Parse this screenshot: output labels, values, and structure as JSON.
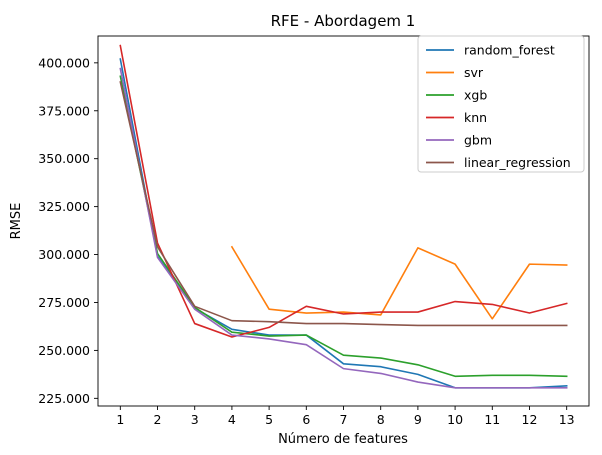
{
  "chart_data": {
    "type": "line",
    "title": "RFE - Abordagem 1",
    "xlabel": "Número de features",
    "ylabel": "RMSE",
    "x": [
      1,
      2,
      3,
      4,
      5,
      6,
      7,
      8,
      9,
      10,
      11,
      12,
      13
    ],
    "x_tick_labels": [
      "1",
      "2",
      "3",
      "4",
      "5",
      "6",
      "7",
      "8",
      "9",
      "10",
      "11",
      "12",
      "13"
    ],
    "ylim": [
      221000,
      414000
    ],
    "y_ticks": [
      225000,
      250000,
      275000,
      300000,
      325000,
      350000,
      375000,
      400000
    ],
    "y_tick_labels": [
      "225.000",
      "250.000",
      "275.000",
      "300.000",
      "325.000",
      "350.000",
      "375.000",
      "400.000"
    ],
    "legend_position": "upper right",
    "grid": false,
    "series": [
      {
        "name": "random_forest",
        "color": "#1f77b4",
        "x": [
          1,
          2,
          3,
          4,
          5,
          6,
          7,
          8,
          9,
          10,
          11,
          12,
          13
        ],
        "values": [
          402000,
          299000,
          272000,
          261000,
          258000,
          258000,
          243000,
          241500,
          237500,
          230500,
          230500,
          230500,
          231500
        ]
      },
      {
        "name": "svr",
        "color": "#ff7f0e",
        "x": [
          4,
          5,
          6,
          7,
          8,
          9,
          10,
          11,
          12,
          13
        ],
        "values": [
          304000,
          271500,
          269500,
          270000,
          268500,
          303500,
          295000,
          266500,
          295000,
          294500
        ]
      },
      {
        "name": "xgb",
        "color": "#2ca02c",
        "x": [
          1,
          2,
          3,
          4,
          5,
          6,
          7,
          8,
          9,
          10,
          11,
          12,
          13
        ],
        "values": [
          393000,
          300500,
          272500,
          259500,
          257500,
          258000,
          247500,
          246000,
          242500,
          236500,
          237000,
          237000,
          236500
        ]
      },
      {
        "name": "knn",
        "color": "#d62728",
        "x": [
          1,
          2,
          3,
          4,
          5,
          6,
          7,
          8,
          9,
          10,
          11,
          12,
          13
        ],
        "values": [
          409000,
          306000,
          264000,
          257000,
          262000,
          273000,
          269000,
          270000,
          270000,
          275500,
          274000,
          269500,
          274500
        ]
      },
      {
        "name": "gbm",
        "color": "#9467bd",
        "x": [
          1,
          2,
          3,
          4,
          5,
          6,
          7,
          8,
          9,
          10,
          11,
          12,
          13
        ],
        "values": [
          397000,
          298500,
          271500,
          258000,
          256000,
          253000,
          240500,
          238000,
          233500,
          230500,
          230500,
          230500,
          230500
        ]
      },
      {
        "name": "linear_regression",
        "color": "#8c564b",
        "x": [
          1,
          2,
          3,
          4,
          5,
          6,
          7,
          8,
          9,
          10,
          11,
          12,
          13
        ],
        "values": [
          390000,
          304000,
          273000,
          265500,
          265000,
          264000,
          264000,
          263500,
          263000,
          263000,
          263000,
          263000,
          263000
        ]
      }
    ]
  }
}
